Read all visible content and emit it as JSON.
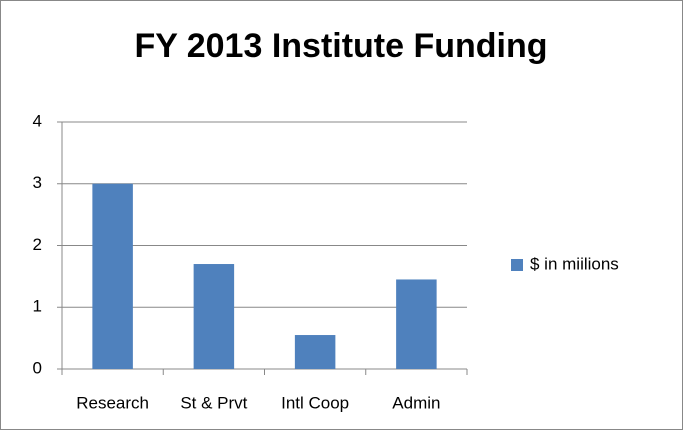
{
  "chart_data": {
    "type": "bar",
    "title": "FY 2013 Institute Funding",
    "categories": [
      "Research",
      "St & Prvt",
      "Intl Coop",
      "Admin"
    ],
    "series": [
      {
        "name": "$ in miilions",
        "color": "#4f81bd",
        "values": [
          3,
          1.7,
          0.55,
          1.45
        ]
      }
    ],
    "ylim": [
      0,
      4
    ],
    "yticks": [
      0,
      1,
      2,
      3,
      4
    ],
    "grid": true,
    "legend": "right"
  }
}
